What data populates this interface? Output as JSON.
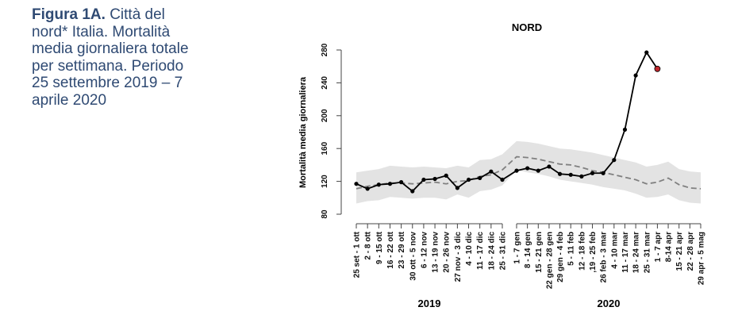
{
  "caption": {
    "label": "Figura 1A.",
    "text": "Città del nord* Italia. Mortalità media giornaliera totale per settimana. Periodo 25 settembre 2019 – 7 aprile 2020"
  },
  "chart_data": {
    "type": "line",
    "title": "NORD",
    "xlabel": "",
    "ylabel": "Mortalità media giornaliera",
    "ylim": [
      80,
      280
    ],
    "yticks": [
      80,
      120,
      160,
      200,
      240,
      280
    ],
    "grid": false,
    "groups": [
      {
        "name": "2019",
        "categories": [
          "25 set - 1 ott",
          "2 - 8 ott",
          "9 - 15 ott",
          "16 - 22 ott",
          "23 - 29 ott",
          "30 ott - 5 nov",
          "6 - 12 nov",
          "13 - 19 nov",
          "20 - 26 nov",
          "27 nov - 3 dic",
          "4 - 10 dic",
          "11 - 17 dic",
          "18 - 24 dic",
          "25 - 31 dic"
        ]
      },
      {
        "name": "2020",
        "categories": [
          "1 - 7 gen",
          "8 - 14 gen",
          "15 - 21 gen",
          "22 gen - 28 gen",
          "29 gen - 4 feb",
          "5 - 11 feb",
          "12 - 18 feb",
          ",19 - 25 feb",
          "26 feb - 3 mar",
          "4 - 10 mar",
          "11 - 17 mar",
          "18 - 24 mar",
          "25 - 31 mar",
          "1 - 7 apr",
          "8-14 apr",
          "15 - 21 apr",
          "22 - 28 apr",
          "29 apr - 5 mag"
        ]
      }
    ],
    "series": [
      {
        "name": "observed",
        "style": "solid-points",
        "color": "#000000",
        "last_point_color": "#c0282d",
        "values": [
          117,
          111,
          116,
          117,
          119,
          108,
          122,
          123,
          127,
          112,
          122,
          124,
          132,
          122,
          133,
          136,
          133,
          138,
          129,
          128,
          126,
          130,
          130,
          146,
          183,
          249,
          277,
          257
        ]
      },
      {
        "name": "expected",
        "style": "dashed",
        "color": "#808080",
        "values": [
          111,
          114,
          116,
          118,
          118,
          117,
          118,
          119,
          117,
          120,
          121,
          126,
          128,
          134,
          150,
          149,
          147,
          144,
          141,
          140,
          137,
          133,
          131,
          128,
          125,
          122,
          117,
          119,
          124,
          116,
          112,
          111
        ]
      },
      {
        "name": "band_lower",
        "color": "#e3e3e3",
        "values": [
          93,
          96,
          97,
          101,
          100,
          99,
          100,
          100,
          98,
          104,
          100,
          108,
          110,
          115,
          134,
          131,
          129,
          126,
          122,
          120,
          118,
          116,
          113,
          111,
          109,
          105,
          100,
          101,
          104,
          97,
          94,
          93
        ]
      },
      {
        "name": "band_upper",
        "color": "#e3e3e3",
        "values": [
          131,
          133,
          135,
          139,
          138,
          137,
          138,
          137,
          136,
          139,
          137,
          146,
          147,
          153,
          169,
          168,
          166,
          163,
          160,
          159,
          157,
          155,
          152,
          149,
          146,
          143,
          138,
          140,
          144,
          135,
          132,
          131
        ]
      }
    ]
  }
}
